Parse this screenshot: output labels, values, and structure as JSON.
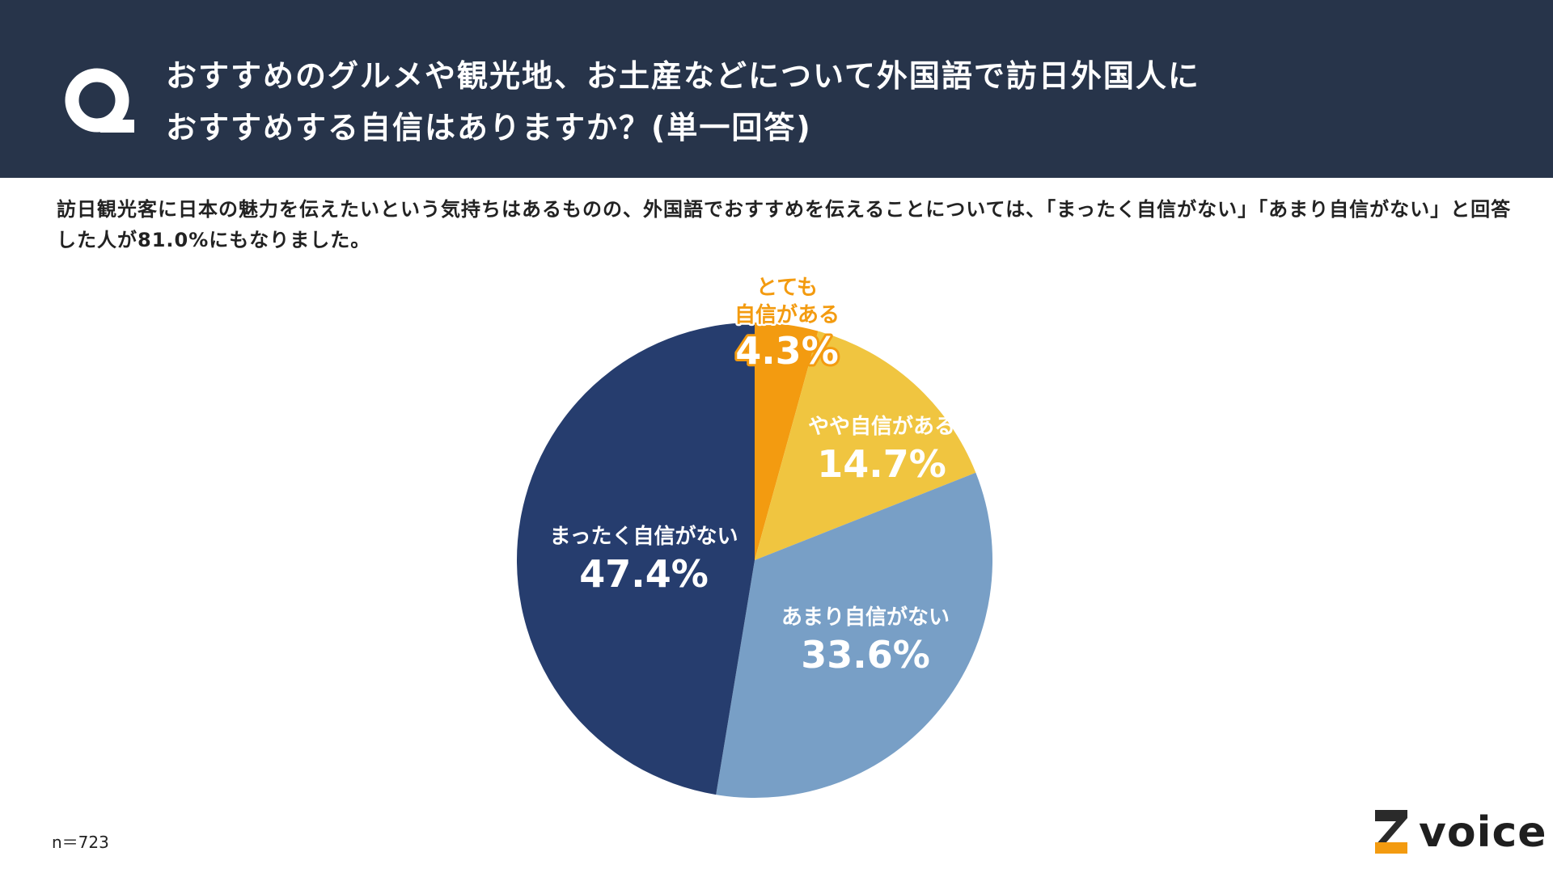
{
  "header": {
    "q_mark": "Q",
    "question_line1": "おすすめのグルメや観光地、お土産などについて外国語で訪日外国人に",
    "question_line2": "おすすめする自信はありますか？(単一回答)"
  },
  "description": "訪日観光客に日本の魅力を伝えたいという気持ちはあるものの、外国語でおすすめを伝えることについては、「まったく自信がない」「あまり自信がない」と回答した人が81.0%にもなりました。",
  "sample_size": "n＝723",
  "logo": {
    "text": "voice",
    "mark": "Z"
  },
  "colors": {
    "header_bg": "#27344a",
    "very_confident": "#f39b10",
    "somewhat_confident": "#f0c540",
    "not_very_confident": "#789fc6",
    "not_at_all_confident": "#263d6e",
    "label_orange": "#f39b10"
  },
  "chart_data": {
    "type": "pie",
    "start_angle_deg": 0,
    "direction": "clockwise",
    "series": [
      {
        "name": "とても自信がある",
        "label_lines": [
          "とても",
          "自信がある"
        ],
        "value": 4.3,
        "value_label": "4.3%",
        "color": "#f39b10"
      },
      {
        "name": "やや自信がある",
        "label_lines": [
          "やや自信がある"
        ],
        "value": 14.7,
        "value_label": "14.7%",
        "color": "#f0c540"
      },
      {
        "name": "あまり自信がない",
        "label_lines": [
          "あまり自信がない"
        ],
        "value": 33.6,
        "value_label": "33.6%",
        "color": "#789fc6"
      },
      {
        "name": "まったく自信がない",
        "label_lines": [
          "まったく自信がない"
        ],
        "value": 47.4,
        "value_label": "47.4%",
        "color": "#263d6e"
      }
    ]
  }
}
